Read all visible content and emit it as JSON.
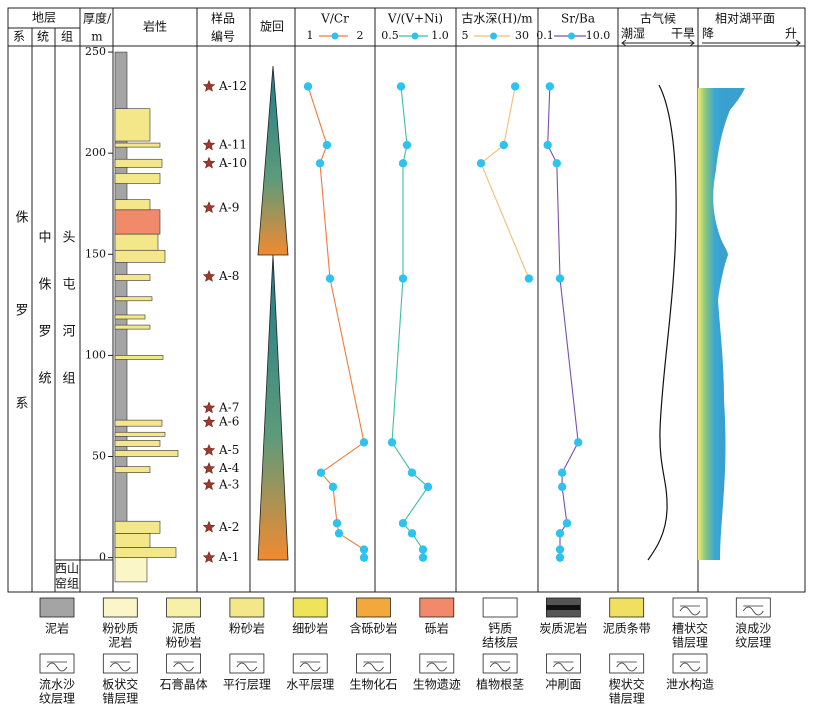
{
  "header": {
    "strata": "地层",
    "system": "系",
    "series": "统",
    "formation": "组",
    "lithology": "岩性",
    "sample": [
      "样品",
      "编号"
    ],
    "cycle": "旋回",
    "climate": {
      "title": "古气候",
      "left": "潮湿",
      "right": "干旱"
    },
    "lake": {
      "title": "相对湖平面",
      "left": "降",
      "right": "升"
    }
  },
  "strata": {
    "system": "侏罗系",
    "series": "中侏罗统",
    "formation": "头屯河组",
    "lower_formation": [
      "西山",
      "窑组"
    ]
  },
  "depth_axis": {
    "title": [
      "厚度/",
      "m"
    ],
    "ylim": [
      -17,
      253
    ],
    "yticks": [
      0,
      50,
      100,
      150,
      200,
      250
    ]
  },
  "samples": {
    "labels": [
      "A-12",
      "A-11",
      "A-10",
      "A-9",
      "A-8",
      "A-7",
      "A-6",
      "A-5",
      "A-4",
      "A-3",
      "A-2",
      "A-1"
    ],
    "depths": [
      233,
      204,
      195,
      173,
      139,
      74,
      67,
      53,
      44,
      36,
      15,
      0
    ]
  },
  "chart_data": [
    {
      "type": "line",
      "title": "V/Cr",
      "depths": [
        233,
        204,
        195,
        138,
        57,
        42,
        35,
        17,
        12,
        4,
        0
      ],
      "values": [
        0.96,
        1.34,
        1.2,
        1.4,
        2.08,
        1.22,
        1.46,
        1.54,
        1.58,
        2.08,
        2.08
      ],
      "xlim": [
        0.7,
        2.3
      ],
      "xticks": [
        1,
        2
      ],
      "color": "#f07a3a",
      "marker_color": "#2ec3ee"
    },
    {
      "type": "line",
      "title": "V/(V+Ni)",
      "depths": [
        233,
        204,
        195,
        138,
        57,
        42,
        35,
        17,
        12,
        4,
        0
      ],
      "values": [
        0.61,
        0.67,
        0.63,
        0.63,
        0.52,
        0.72,
        0.88,
        0.63,
        0.72,
        0.83,
        0.83
      ],
      "xlim": [
        0.35,
        1.16
      ],
      "xticks": [
        0.5,
        {
          "value": 1,
          "label": "1.0"
        }
      ],
      "color": "#3cc0a0",
      "marker_color": "#2ec3ee"
    },
    {
      "type": "line",
      "title": "古水深(H)/m",
      "depths": [
        233,
        204,
        195,
        138
      ],
      "values": [
        27,
        22,
        12,
        33
      ],
      "xlim": [
        1.05,
        37
      ],
      "xticks": [
        5,
        30
      ],
      "color": "#f0c070",
      "marker_color": "#2ec3ee"
    },
    {
      "type": "line",
      "title": "Sr/Ba",
      "depths": [
        233,
        204,
        195,
        138,
        57,
        42,
        35,
        17,
        12,
        4,
        0
      ],
      "values": [
        1.0,
        0.6,
        2.3,
        2.9,
        6.3,
        3.3,
        3.3,
        4.2,
        2.9,
        2.9,
        2.9
      ],
      "xlim": [
        -1.21,
        13.74
      ],
      "xticks": [
        0.1,
        {
          "value": 10,
          "label": "10.0"
        }
      ],
      "color": "#7a4fb0",
      "marker_color": "#2ec3ee"
    }
  ],
  "legend": [
    [
      "泥岩"
    ],
    [
      "粉砂质",
      "泥岩"
    ],
    [
      "泥质",
      "粉砂岩"
    ],
    [
      "粉砂岩"
    ],
    [
      "细砂岩"
    ],
    [
      "含砾砂岩"
    ],
    [
      "砾岩"
    ],
    [
      "钙质",
      "结核层"
    ],
    [
      "炭质泥岩"
    ],
    [
      "泥质条带"
    ],
    [
      "槽状交",
      "错层理"
    ],
    [
      "浪成沙",
      "纹层理"
    ],
    [
      "流水沙",
      "纹层理"
    ],
    [
      "板状交",
      "错层理"
    ],
    [
      "石膏晶体"
    ],
    [
      "平行层理"
    ],
    [
      "水平层理"
    ],
    [
      "生物化石"
    ],
    [
      "生物遗迹"
    ],
    [
      "植物根茎"
    ],
    [
      "冲刷面"
    ],
    [
      "楔状交",
      "错层理"
    ],
    [
      "泄水构造"
    ]
  ]
}
